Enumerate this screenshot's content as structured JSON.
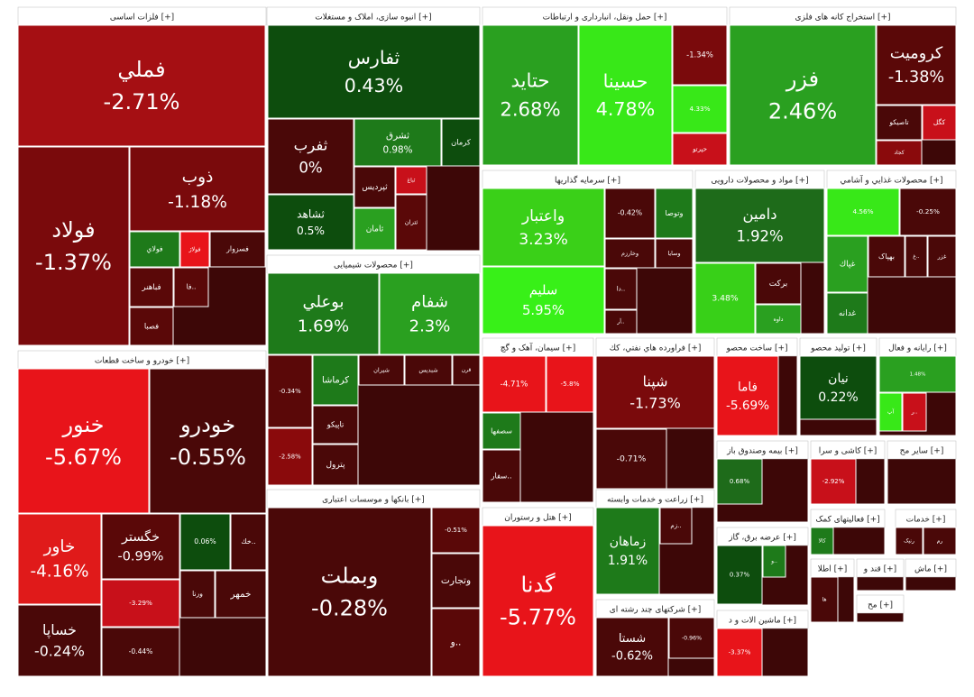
{
  "sectors": [
    {
      "title": "فلزات اساسی [+]",
      "tiles": [
        {
          "name": "فملي",
          "change": "-2.71%"
        },
        {
          "name": "فولاد",
          "change": "-1.37%"
        },
        {
          "name": "ذوب",
          "change": "-1.18%"
        },
        {
          "name": "فولاي"
        },
        {
          "name": "فولاژ"
        },
        {
          "name": "فسزوار"
        },
        {
          "name": "فباهنر"
        },
        {
          "name": "فصبا"
        },
        {
          "name": "فا.."
        }
      ]
    },
    {
      "title": "انبوه سازی، املاک و مستغلات [+]",
      "tiles": [
        {
          "name": "ثفارس",
          "change": "0.43%"
        },
        {
          "name": "ثفرب",
          "change": "0%"
        },
        {
          "name": "ثشاهد",
          "change": "0.5%"
        },
        {
          "name": "ثشرق",
          "change": "0.98%"
        },
        {
          "name": "کرمان"
        },
        {
          "name": "ثپرديس"
        },
        {
          "name": "ثباغ"
        },
        {
          "name": "ثتران"
        },
        {
          "name": "ثامان"
        }
      ]
    },
    {
      "title": "محصولات شیمیایی [+]",
      "tiles": [
        {
          "name": "بوعلي",
          "change": "1.69%"
        },
        {
          "name": "شفام",
          "change": "2.3%"
        },
        {
          "name": "شیران"
        },
        {
          "name": "شبديس"
        },
        {
          "name": "قرن"
        },
        {
          "name": "كرماشا"
        },
        {
          "name": "تاپیکو"
        },
        {
          "name": "پترول"
        },
        {
          "change": "-0.34%"
        },
        {
          "change": "-2.58%"
        }
      ]
    },
    {
      "title": "بانکها و موسسات اعتباری [+]",
      "tiles": [
        {
          "name": "وبملت",
          "change": "-0.28%"
        },
        {
          "change": "-0.51%"
        },
        {
          "name": "وتجارت"
        },
        {
          "name": "و.."
        }
      ]
    },
    {
      "title": "خودرو و ساخت قطعات [+]",
      "tiles": [
        {
          "name": "خنور",
          "change": "-5.67%"
        },
        {
          "name": "خودرو",
          "change": "-0.55%"
        },
        {
          "name": "خاور",
          "change": "-4.16%"
        },
        {
          "name": "خگستر",
          "change": "-0.99%"
        },
        {
          "change": "0.06%"
        },
        {
          "name": "خك.."
        },
        {
          "change": "-3.29%"
        },
        {
          "name": "ورنا"
        },
        {
          "name": "خمهر"
        },
        {
          "name": "خساپا",
          "change": "-0.24%"
        },
        {
          "change": "-0.44%"
        }
      ]
    },
    {
      "title": "حمل ونقل، انبارداری و ارتباطات [+]",
      "tiles": [
        {
          "name": "حتاید",
          "change": "2.68%"
        },
        {
          "name": "حسينا",
          "change": "4.78%"
        },
        {
          "change": "-1.34%"
        },
        {
          "change": "4.33%"
        },
        {
          "name": "حپرتو"
        }
      ]
    },
    {
      "title": "استخراج کانه های فلزی [+]",
      "tiles": [
        {
          "name": "فزر",
          "change": "2.46%"
        },
        {
          "name": "كروميت",
          "change": "-1.38%"
        },
        {
          "name": "تاصيكو"
        },
        {
          "name": "كگل"
        },
        {
          "name": "كجاد"
        }
      ]
    },
    {
      "title": "سرمایه گذاریها [+]",
      "tiles": [
        {
          "name": "واعتبار",
          "change": "3.23%"
        },
        {
          "name": "سليم",
          "change": "5.95%"
        },
        {
          "change": "-0.42%"
        },
        {
          "name": "وتوصا"
        },
        {
          "name": "وخارزم"
        },
        {
          "name": "وسايا"
        },
        {
          "name": "دا.."
        },
        {
          "name": "آر.."
        }
      ]
    },
    {
      "title": "مواد و محصولات دارویی [+]",
      "tiles": [
        {
          "name": "دامين",
          "change": "1.92%"
        },
        {
          "change": "3.48%"
        },
        {
          "name": "بركت"
        },
        {
          "name": "داوه"
        }
      ]
    },
    {
      "title": "محصولات غذايي و آشامي [+]",
      "tiles": [
        {
          "change": "4.56%"
        },
        {
          "change": "-0.25%"
        },
        {
          "name": "غپاك"
        },
        {
          "name": "بهپاک"
        },
        {
          "name": "غ.."
        },
        {
          "name": "غزر"
        },
        {
          "name": "غدانه"
        }
      ]
    },
    {
      "title": "سیمان، آهک و گچ [+]",
      "tiles": [
        {
          "change": "-4.71%"
        },
        {
          "change": "-5.8%"
        },
        {
          "name": "سصفها"
        },
        {
          "name": "سفار.."
        }
      ]
    },
    {
      "title": "فراورده هاي نفتي، كك [+]",
      "tiles": [
        {
          "name": "شپنا",
          "change": "-1.73%"
        },
        {
          "change": "-0.71%"
        }
      ]
    },
    {
      "title": "ساخت محصو [+]",
      "tiles": [
        {
          "name": "فاما",
          "change": "-5.69%"
        }
      ]
    },
    {
      "title": "تولید محصو [+]",
      "tiles": [
        {
          "name": "نیان",
          "change": "0.22%"
        }
      ]
    },
    {
      "title": "رایانه و فعال [+]",
      "tiles": [
        {
          "change": "1.48%"
        },
        {
          "name": "آپ"
        },
        {
          "name": "ر.."
        }
      ]
    },
    {
      "title": "هتل و رستوران [+]",
      "tiles": [
        {
          "name": "گدنا",
          "change": "-5.77%"
        }
      ]
    },
    {
      "title": "زراعت و خدمات وابسته [+]",
      "tiles": [
        {
          "name": "زماهان",
          "change": "1.91%"
        },
        {
          "name": "زم.."
        }
      ]
    },
    {
      "title": "شرکتهای چند رشته ای [+]",
      "tiles": [
        {
          "name": "شستا",
          "change": "-0.62%"
        },
        {
          "change": "-0.96%"
        }
      ]
    },
    {
      "title": "بیمه وصندوق باز [+]",
      "tiles": [
        {
          "change": "0.68%"
        }
      ]
    },
    {
      "title": "کاشی و سرا [+]",
      "tiles": [
        {
          "change": "-2.92%"
        }
      ]
    },
    {
      "title": "سایر مح [+]",
      "tiles": []
    },
    {
      "title": "عرضه برق، گاز [+]",
      "tiles": [
        {
          "change": "0.37%"
        },
        {
          "name": "و.."
        }
      ]
    },
    {
      "title": "فعالیتهای کمک [+]",
      "tiles": [
        {
          "name": "کالا"
        }
      ]
    },
    {
      "title": "خدمات [+]",
      "tiles": [
        {
          "name": "رنیک"
        },
        {
          "name": "رم"
        }
      ]
    },
    {
      "title": "ماشین الات و د [+]",
      "tiles": [
        {
          "change": "-3.37%"
        }
      ]
    },
    {
      "title": "اطلا [+]",
      "tiles": [
        {
          "name": "ها"
        }
      ]
    },
    {
      "title": "قند و [+]",
      "tiles": []
    },
    {
      "title": "ماش [+]",
      "tiles": []
    },
    {
      "title": "مح [+]",
      "tiles": []
    }
  ]
}
